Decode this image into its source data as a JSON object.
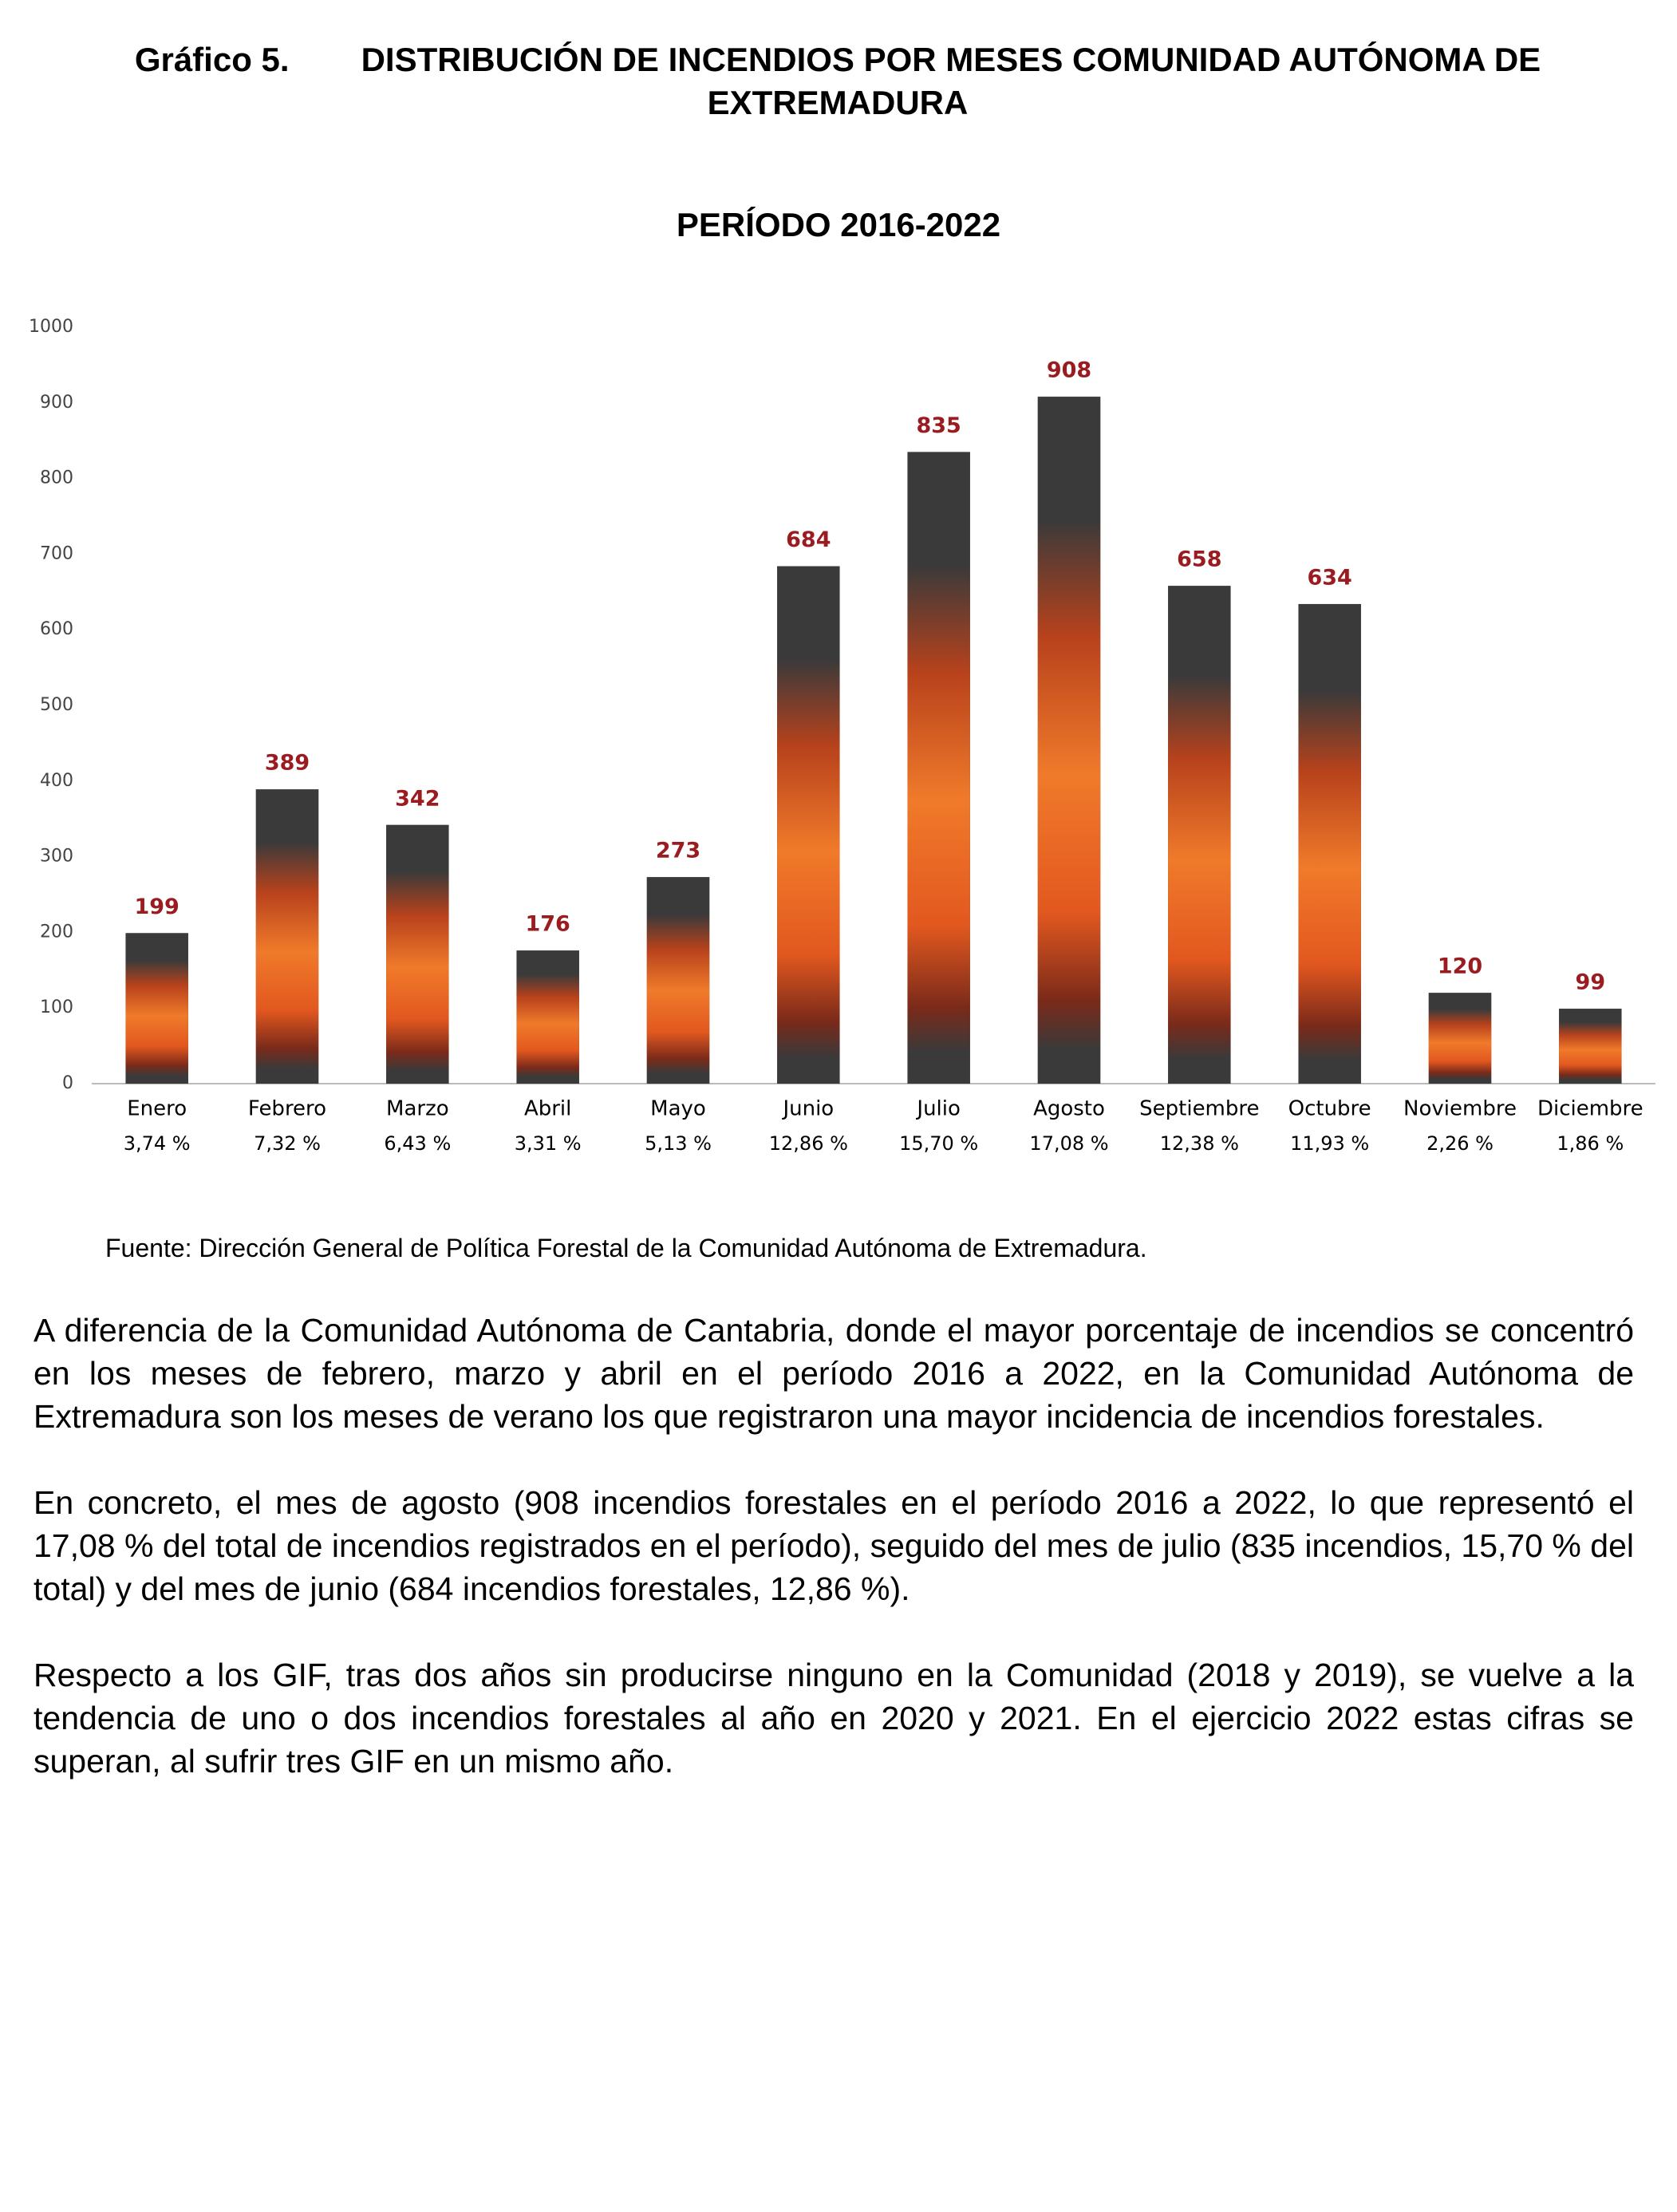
{
  "header": {
    "label": "Gráfico 5.",
    "title": "DISTRIBUCIÓN DE INCENDIOS POR MESES COMUNIDAD AUTÓNOMA DE EXTREMADURA"
  },
  "chart_data": {
    "type": "bar",
    "title": "PERÍODO 2016-2022",
    "categories": [
      "Enero",
      "Febrero",
      "Marzo",
      "Abril",
      "Mayo",
      "Junio",
      "Julio",
      "Agosto",
      "Septiembre",
      "Octubre",
      "Noviembre",
      "Diciembre"
    ],
    "values": [
      199,
      389,
      342,
      176,
      273,
      684,
      835,
      908,
      658,
      634,
      120,
      99
    ],
    "share_labels": [
      "3,74 %",
      "7,32 %",
      "6,43 %",
      "3,31 %",
      "5,13 %",
      "12,86 %",
      "15,70 %",
      "17,08 %",
      "12,38 %",
      "11,93 %",
      "2,26 %",
      "1,86 %"
    ],
    "color": "#3a3a3a",
    "label_color": "#9b1c20",
    "ylim": [
      0,
      1000
    ],
    "yticks": [
      0,
      100,
      200,
      300,
      400,
      500,
      600,
      700,
      800,
      900,
      1000
    ],
    "grid": false
  },
  "source": "Fuente: Dirección General de Política Forestal de la Comunidad Autónoma de Extremadura.",
  "paragraphs": [
    "A diferencia de la Comunidad Autónoma de Cantabria, donde el mayor porcentaje de incendios se concentró en los meses de febrero, marzo y abril en el período 2016 a 2022, en la Comunidad Autónoma de Extremadura son los meses de verano los que registraron una mayor incidencia de incendios forestales.",
    "En concreto, el mes de agosto (908 incendios forestales en el período 2016 a 2022, lo que representó el 17,08 % del total de incendios registrados en el período), seguido del mes de julio (835 incendios, 15,70 % del total) y del mes de junio (684 incendios forestales, 12,86 %).",
    "Respecto a los GIF, tras dos años sin producirse ninguno en la Comunidad (2018 y 2019), se vuelve a la tendencia de uno o dos incendios forestales al año en 2020 y 2021. En el ejercicio 2022 estas cifras se superan, al sufrir tres GIF en un mismo año."
  ]
}
